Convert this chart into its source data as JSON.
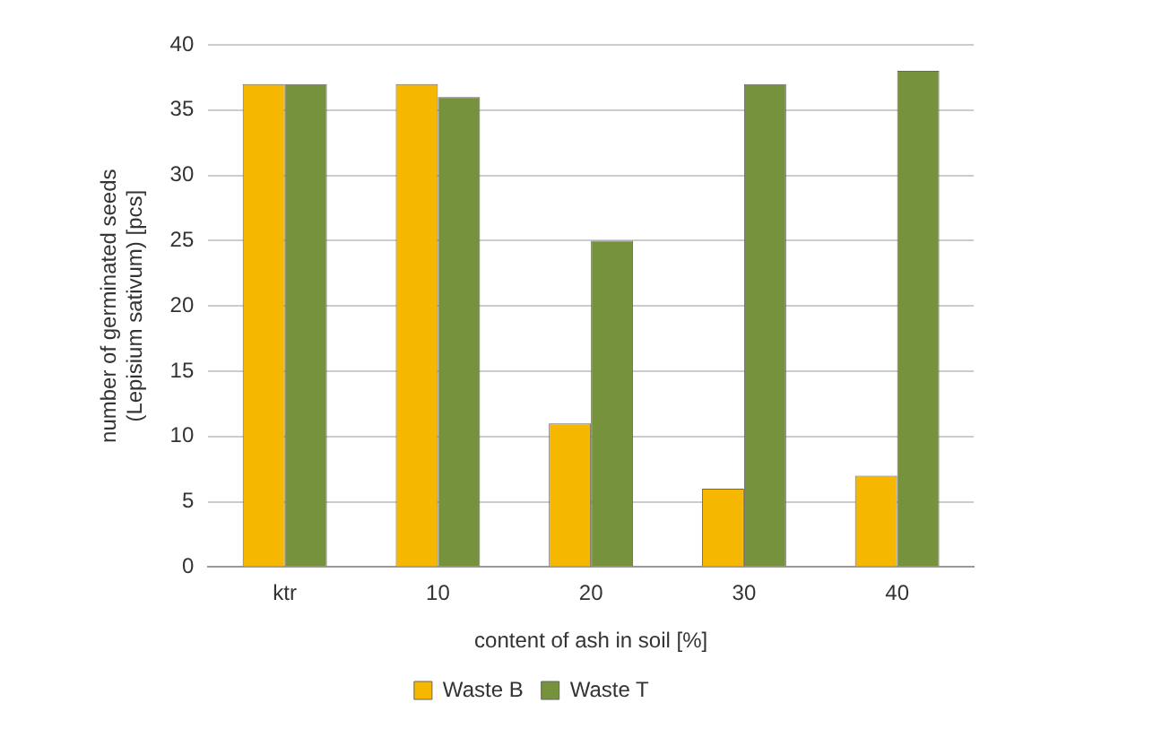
{
  "chart_data": {
    "type": "bar",
    "xlabel": "content of ash in soil [%]",
    "ylabel": "number of germinated seeds (Lepisium sativum) [pcs]",
    "categories": [
      "ktr",
      "10",
      "20",
      "30",
      "40"
    ],
    "series": [
      {
        "name": "Waste B",
        "color": "#f5b700",
        "values": [
          37,
          37,
          11,
          6,
          7
        ]
      },
      {
        "name": "Waste T",
        "color": "#76923c",
        "values": [
          37,
          36,
          25,
          37,
          38
        ]
      }
    ],
    "ylim": [
      0,
      40
    ],
    "yticks": [
      0,
      5,
      10,
      15,
      20,
      25,
      30,
      35,
      40
    ],
    "grid": "y",
    "legend": "bottom"
  }
}
